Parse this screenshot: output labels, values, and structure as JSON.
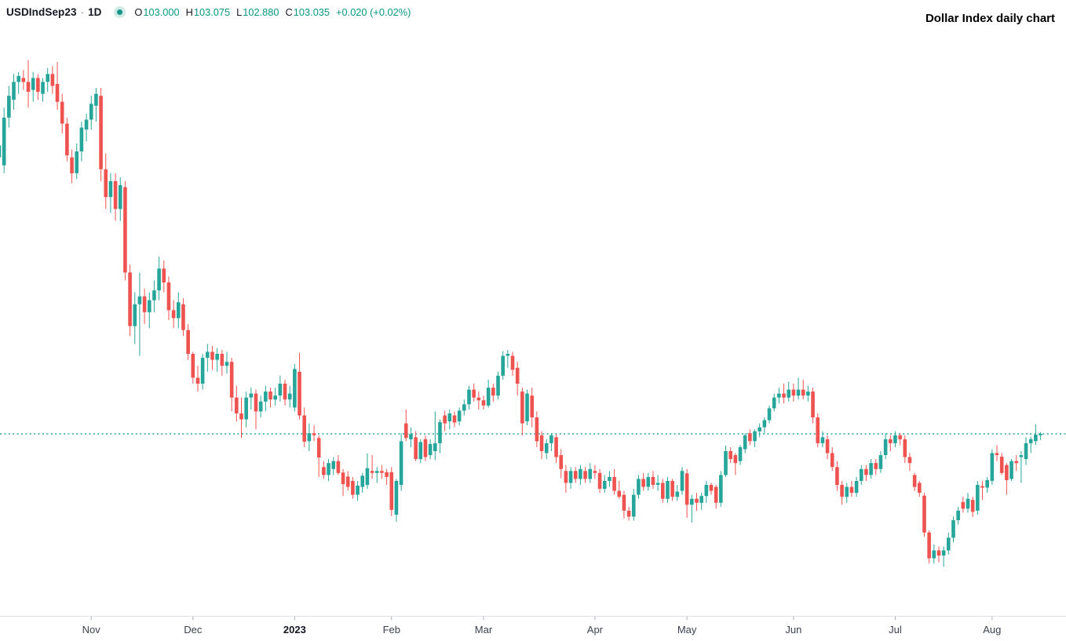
{
  "header": {
    "symbol": "USDIndSep23",
    "separator": "·",
    "interval": "1D",
    "ohlc_items": [
      {
        "k": "O",
        "v": "103.000"
      },
      {
        "k": "H",
        "v": "103.075"
      },
      {
        "k": "L",
        "v": "102.880"
      },
      {
        "k": "C",
        "v": "103.035"
      }
    ],
    "change": "+0.020 (+0.02%)",
    "title_right": "Dollar Index daily chart"
  },
  "colors": {
    "up": "#26a69a",
    "down": "#ef5350",
    "last_price_line": "#26a69a",
    "legend_value": "#089981",
    "text_dark": "#131722",
    "axis_text": "#3c4250",
    "axis_border": "#e0e3eb",
    "tick": "#b2b5be",
    "background": "#ffffff"
  },
  "chart_data": {
    "type": "candlestick",
    "title": "Dollar Index daily chart",
    "symbol": "USDIndSep23",
    "interval": "1D",
    "legend_last": {
      "open": 103.0,
      "high": 103.075,
      "low": 102.88,
      "close": 103.035,
      "change": 0.02,
      "change_pct": 0.02
    },
    "last_price_line": 103.035,
    "y_range_approx": [
      99.5,
      112.6
    ],
    "x_axis_labels": [
      {
        "label": "Nov",
        "index": 19,
        "year": false
      },
      {
        "label": "Dec",
        "index": 40,
        "year": false
      },
      {
        "label": "2023",
        "index": 61,
        "year": true
      },
      {
        "label": "Feb",
        "index": 81,
        "year": false
      },
      {
        "label": "Mar",
        "index": 100,
        "year": false
      },
      {
        "label": "Apr",
        "index": 123,
        "year": false
      },
      {
        "label": "May",
        "index": 142,
        "year": false
      },
      {
        "label": "Jun",
        "index": 164,
        "year": false
      },
      {
        "label": "Jul",
        "index": 185,
        "year": false
      },
      {
        "label": "Aug",
        "index": 205,
        "year": false
      }
    ],
    "candles_format": [
      "open",
      "high",
      "low",
      "close"
    ],
    "candles": [
      [
        110.0,
        110.45,
        109.6,
        110.3
      ],
      [
        109.8,
        111.25,
        109.6,
        111.0
      ],
      [
        111.0,
        111.8,
        110.75,
        111.55
      ],
      [
        111.45,
        112.1,
        111.2,
        111.9
      ],
      [
        111.9,
        112.15,
        111.6,
        112.05
      ],
      [
        112.0,
        112.2,
        111.7,
        111.9
      ],
      [
        111.9,
        112.45,
        111.25,
        111.65
      ],
      [
        111.7,
        112.15,
        111.4,
        112.0
      ],
      [
        112.0,
        112.1,
        111.45,
        111.65
      ],
      [
        111.6,
        112.0,
        111.4,
        111.9
      ],
      [
        111.9,
        112.25,
        111.65,
        112.1
      ],
      [
        112.1,
        112.3,
        111.6,
        111.8
      ],
      [
        111.85,
        112.4,
        111.2,
        111.4
      ],
      [
        111.4,
        111.6,
        110.6,
        110.85
      ],
      [
        110.85,
        111.0,
        109.9,
        110.05
      ],
      [
        110.0,
        110.2,
        109.35,
        109.6
      ],
      [
        109.6,
        110.35,
        109.45,
        110.15
      ],
      [
        110.15,
        110.9,
        109.9,
        110.75
      ],
      [
        110.7,
        111.1,
        110.4,
        110.95
      ],
      [
        110.95,
        111.55,
        110.7,
        111.35
      ],
      [
        111.3,
        111.75,
        110.9,
        111.6
      ],
      [
        111.55,
        111.75,
        109.4,
        109.7
      ],
      [
        109.7,
        110.1,
        108.7,
        109.0
      ],
      [
        109.0,
        109.6,
        108.6,
        109.4
      ],
      [
        109.4,
        109.6,
        108.4,
        108.7
      ],
      [
        108.7,
        109.5,
        108.4,
        109.3
      ],
      [
        109.25,
        109.4,
        106.9,
        107.1
      ],
      [
        107.1,
        107.3,
        105.5,
        105.75
      ],
      [
        105.75,
        106.6,
        105.3,
        106.3
      ],
      [
        106.3,
        107.1,
        105.0,
        106.5
      ],
      [
        106.5,
        106.7,
        105.8,
        106.1
      ],
      [
        106.1,
        106.6,
        105.7,
        106.4
      ],
      [
        106.4,
        106.9,
        106.1,
        106.65
      ],
      [
        106.65,
        107.5,
        106.4,
        107.2
      ],
      [
        107.2,
        107.4,
        106.6,
        106.85
      ],
      [
        106.85,
        107.0,
        105.9,
        106.15
      ],
      [
        106.15,
        106.4,
        105.7,
        105.95
      ],
      [
        105.95,
        106.6,
        105.7,
        106.35
      ],
      [
        106.3,
        106.45,
        105.5,
        105.65
      ],
      [
        105.65,
        105.8,
        104.9,
        105.05
      ],
      [
        105.05,
        105.1,
        104.3,
        104.45
      ],
      [
        104.45,
        104.75,
        104.1,
        104.3
      ],
      [
        104.3,
        105.05,
        104.15,
        104.95
      ],
      [
        104.95,
        105.3,
        104.6,
        105.1
      ],
      [
        105.1,
        105.25,
        104.65,
        104.9
      ],
      [
        104.9,
        105.2,
        104.6,
        105.05
      ],
      [
        105.05,
        105.15,
        104.5,
        104.75
      ],
      [
        104.75,
        105.1,
        104.55,
        104.85
      ],
      [
        104.85,
        104.95,
        103.6,
        103.95
      ],
      [
        103.95,
        104.25,
        103.35,
        103.55
      ],
      [
        103.55,
        103.95,
        102.93,
        103.4
      ],
      [
        103.4,
        104.1,
        103.2,
        103.95
      ],
      [
        103.95,
        104.2,
        103.65,
        104.05
      ],
      [
        104.05,
        104.15,
        103.15,
        103.6
      ],
      [
        103.6,
        104.0,
        103.45,
        103.85
      ],
      [
        103.85,
        104.25,
        103.6,
        104.1
      ],
      [
        104.1,
        104.2,
        103.7,
        103.9
      ],
      [
        103.9,
        104.2,
        103.75,
        104.0
      ],
      [
        104.0,
        104.5,
        103.85,
        104.3
      ],
      [
        104.3,
        104.4,
        103.75,
        103.9
      ],
      [
        103.9,
        104.25,
        103.7,
        104.05
      ],
      [
        103.7,
        104.8,
        103.6,
        104.67
      ],
      [
        104.6,
        105.08,
        103.4,
        103.5
      ],
      [
        103.5,
        103.7,
        102.7,
        102.84
      ],
      [
        102.85,
        103.3,
        102.6,
        103.05
      ],
      [
        103.05,
        103.25,
        102.85,
        103.0
      ],
      [
        102.93,
        103.0,
        101.95,
        102.44
      ],
      [
        102.2,
        102.35,
        101.9,
        102.0
      ],
      [
        102.0,
        102.4,
        101.85,
        102.3
      ],
      [
        102.15,
        102.45,
        102.0,
        102.35
      ],
      [
        102.35,
        102.5,
        102.0,
        102.05
      ],
      [
        102.06,
        102.15,
        101.47,
        101.77
      ],
      [
        101.96,
        102.1,
        101.6,
        101.7
      ],
      [
        101.85,
        101.95,
        101.4,
        101.5
      ],
      [
        101.5,
        101.85,
        101.35,
        101.73
      ],
      [
        101.7,
        102.05,
        101.55,
        101.98
      ],
      [
        101.75,
        102.54,
        101.65,
        102.17
      ],
      [
        102.1,
        102.5,
        101.9,
        102.05
      ],
      [
        102.05,
        102.2,
        101.8,
        102.1
      ],
      [
        102.1,
        102.25,
        101.9,
        102.05
      ],
      [
        102.07,
        102.15,
        101.75,
        101.95
      ],
      [
        102.07,
        102.2,
        100.96,
        101.12
      ],
      [
        101.0,
        101.9,
        100.82,
        101.85
      ],
      [
        101.75,
        103.05,
        101.6,
        102.85
      ],
      [
        103.3,
        103.65,
        102.85,
        102.93
      ],
      [
        102.9,
        103.2,
        102.7,
        103.03
      ],
      [
        102.95,
        103.1,
        102.35,
        102.4
      ],
      [
        102.4,
        102.9,
        102.3,
        102.83
      ],
      [
        102.9,
        103.0,
        102.35,
        102.45
      ],
      [
        102.5,
        102.9,
        102.4,
        102.78
      ],
      [
        102.6,
        103.6,
        102.37,
        102.8
      ],
      [
        102.8,
        103.4,
        102.55,
        103.33
      ],
      [
        103.5,
        103.62,
        103.1,
        103.3
      ],
      [
        103.35,
        103.65,
        103.15,
        103.55
      ],
      [
        103.5,
        103.6,
        103.2,
        103.32
      ],
      [
        103.35,
        103.7,
        103.25,
        103.62
      ],
      [
        103.62,
        103.9,
        103.5,
        103.78
      ],
      [
        103.78,
        104.25,
        103.65,
        104.15
      ],
      [
        104.15,
        104.3,
        103.85,
        103.95
      ],
      [
        103.95,
        104.1,
        103.65,
        103.88
      ],
      [
        103.88,
        104.0,
        103.65,
        103.75
      ],
      [
        103.75,
        104.4,
        103.7,
        104.2
      ],
      [
        104.2,
        104.3,
        103.85,
        104.0
      ],
      [
        104.0,
        104.6,
        103.9,
        104.5
      ],
      [
        104.5,
        105.12,
        104.4,
        105.0
      ],
      [
        105.0,
        105.15,
        104.7,
        105.05
      ],
      [
        105.0,
        105.1,
        104.5,
        104.65
      ],
      [
        104.7,
        104.85,
        104.0,
        104.3
      ],
      [
        104.1,
        104.2,
        103.0,
        103.3
      ],
      [
        103.35,
        104.15,
        103.25,
        104.05
      ],
      [
        104.0,
        104.2,
        103.2,
        103.45
      ],
      [
        103.45,
        103.6,
        102.7,
        102.85
      ],
      [
        103.0,
        103.1,
        102.4,
        102.6
      ],
      [
        102.55,
        102.9,
        102.4,
        102.8
      ],
      [
        102.8,
        103.05,
        102.6,
        103.0
      ],
      [
        102.95,
        103.03,
        102.3,
        102.45
      ],
      [
        102.5,
        102.65,
        101.92,
        102.15
      ],
      [
        102.1,
        102.25,
        101.55,
        101.8
      ],
      [
        101.8,
        102.2,
        101.65,
        102.1
      ],
      [
        102.1,
        102.2,
        101.8,
        101.9
      ],
      [
        101.9,
        102.25,
        101.75,
        102.15
      ],
      [
        102.1,
        102.2,
        101.8,
        101.9
      ],
      [
        101.9,
        102.3,
        101.8,
        102.15
      ],
      [
        102.1,
        102.25,
        101.9,
        102.05
      ],
      [
        102.05,
        102.15,
        101.55,
        101.65
      ],
      [
        101.65,
        102.0,
        101.55,
        101.85
      ],
      [
        101.85,
        102.1,
        101.7,
        101.95
      ],
      [
        101.95,
        102.15,
        101.5,
        101.6
      ],
      [
        101.6,
        101.85,
        101.4,
        101.45
      ],
      [
        101.5,
        101.6,
        100.9,
        101.1
      ],
      [
        101.1,
        101.2,
        100.85,
        100.95
      ],
      [
        100.95,
        101.65,
        100.85,
        101.5
      ],
      [
        101.5,
        102.0,
        101.4,
        101.9
      ],
      [
        101.9,
        102.05,
        101.6,
        101.7
      ],
      [
        101.7,
        102.05,
        101.6,
        101.95
      ],
      [
        101.95,
        102.1,
        101.65,
        101.75
      ],
      [
        101.75,
        102.0,
        101.6,
        101.8
      ],
      [
        101.8,
        101.9,
        101.3,
        101.4
      ],
      [
        101.4,
        101.95,
        101.3,
        101.85
      ],
      [
        101.85,
        101.9,
        101.35,
        101.45
      ],
      [
        101.45,
        101.75,
        101.35,
        101.58
      ],
      [
        101.6,
        102.2,
        101.5,
        102.1
      ],
      [
        102.04,
        102.15,
        100.92,
        101.25
      ],
      [
        101.25,
        101.5,
        100.8,
        101.4
      ],
      [
        101.4,
        101.55,
        101.1,
        101.3
      ],
      [
        101.3,
        101.55,
        101.12,
        101.47
      ],
      [
        101.47,
        101.85,
        101.3,
        101.75
      ],
      [
        101.75,
        101.8,
        101.5,
        101.6
      ],
      [
        101.7,
        101.75,
        101.15,
        101.3
      ],
      [
        101.3,
        102.1,
        101.2,
        102.0
      ],
      [
        102.0,
        102.74,
        101.95,
        102.6
      ],
      [
        102.6,
        102.7,
        102.3,
        102.4
      ],
      [
        102.5,
        102.55,
        102.0,
        102.3
      ],
      [
        102.35,
        102.75,
        102.25,
        102.7
      ],
      [
        102.65,
        103.05,
        102.55,
        103.0
      ],
      [
        103.05,
        103.15,
        102.75,
        102.85
      ],
      [
        102.85,
        103.15,
        102.7,
        103.1
      ],
      [
        103.1,
        103.3,
        102.95,
        103.2
      ],
      [
        103.2,
        103.45,
        103.05,
        103.38
      ],
      [
        103.38,
        103.75,
        103.3,
        103.68
      ],
      [
        103.68,
        104.05,
        103.6,
        103.95
      ],
      [
        103.95,
        104.2,
        103.8,
        104.05
      ],
      [
        104.05,
        104.3,
        103.8,
        103.95
      ],
      [
        103.95,
        104.35,
        103.85,
        104.15
      ],
      [
        104.15,
        104.3,
        103.85,
        104.0
      ],
      [
        104.0,
        104.45,
        103.9,
        104.15
      ],
      [
        104.15,
        104.4,
        103.9,
        104.0
      ],
      [
        104.0,
        104.25,
        103.85,
        104.1
      ],
      [
        104.1,
        104.2,
        103.3,
        103.45
      ],
      [
        103.45,
        103.55,
        102.7,
        102.8
      ],
      [
        102.8,
        103.1,
        102.7,
        102.95
      ],
      [
        102.9,
        103.0,
        102.4,
        102.55
      ],
      [
        102.55,
        102.7,
        102.1,
        102.2
      ],
      [
        102.2,
        102.35,
        101.6,
        101.75
      ],
      [
        101.75,
        101.85,
        101.25,
        101.45
      ],
      [
        101.45,
        101.8,
        101.3,
        101.7
      ],
      [
        101.7,
        101.85,
        101.45,
        101.55
      ],
      [
        101.55,
        101.95,
        101.45,
        101.85
      ],
      [
        101.85,
        102.25,
        101.75,
        102.15
      ],
      [
        102.15,
        102.25,
        101.85,
        102.0
      ],
      [
        102.0,
        102.4,
        101.9,
        102.3
      ],
      [
        102.3,
        102.4,
        102.0,
        102.15
      ],
      [
        102.15,
        102.6,
        102.05,
        102.5
      ],
      [
        102.5,
        103.05,
        102.4,
        102.9
      ],
      [
        102.9,
        103.0,
        102.6,
        102.8
      ],
      [
        102.8,
        103.1,
        102.7,
        103.0
      ],
      [
        103.0,
        103.05,
        102.75,
        102.9
      ],
      [
        102.9,
        103.0,
        102.3,
        102.45
      ],
      [
        102.45,
        102.55,
        102.1,
        102.3
      ],
      [
        102.0,
        102.05,
        101.6,
        101.7
      ],
      [
        101.8,
        101.85,
        101.45,
        101.55
      ],
      [
        101.48,
        101.55,
        100.44,
        100.55
      ],
      [
        100.55,
        100.6,
        99.77,
        99.9
      ],
      [
        99.9,
        100.25,
        99.77,
        100.1
      ],
      [
        100.1,
        100.2,
        99.8,
        99.97
      ],
      [
        99.97,
        100.2,
        99.69,
        100.1
      ],
      [
        100.1,
        100.55,
        100.0,
        100.42
      ],
      [
        100.42,
        100.95,
        100.3,
        100.86
      ],
      [
        100.86,
        101.2,
        100.75,
        101.1
      ],
      [
        101.32,
        101.45,
        101.05,
        101.15
      ],
      [
        101.15,
        101.55,
        101.05,
        101.4
      ],
      [
        101.37,
        101.45,
        100.94,
        101.07
      ],
      [
        101.1,
        101.85,
        101.0,
        101.75
      ],
      [
        101.72,
        101.85,
        101.37,
        101.68
      ],
      [
        101.68,
        101.95,
        101.55,
        101.87
      ],
      [
        101.85,
        102.65,
        101.75,
        102.55
      ],
      [
        102.55,
        102.75,
        102.35,
        102.5
      ],
      [
        102.46,
        102.55,
        102.0,
        102.05
      ],
      [
        102.25,
        102.3,
        101.5,
        101.87
      ],
      [
        101.9,
        102.4,
        101.85,
        102.35
      ],
      [
        102.35,
        102.5,
        102.1,
        102.3
      ],
      [
        102.45,
        102.6,
        101.8,
        102.5
      ],
      [
        102.4,
        102.95,
        102.25,
        102.8
      ],
      [
        102.8,
        102.96,
        102.55,
        102.9
      ],
      [
        102.85,
        103.28,
        102.75,
        103.015
      ],
      [
        103.0,
        103.075,
        102.88,
        103.035
      ]
    ]
  }
}
